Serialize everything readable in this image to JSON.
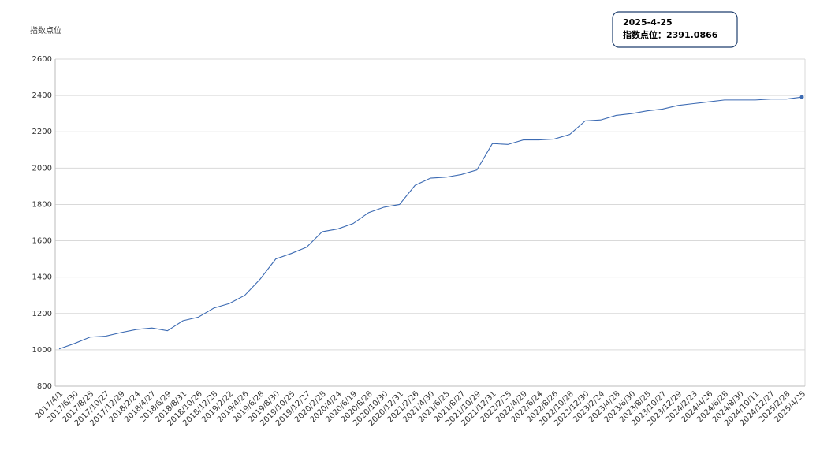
{
  "chart_data": {
    "type": "line",
    "y_label": "指数点位",
    "categories": [
      "2017/4/1",
      "2017/6/30",
      "2017/8/25",
      "2017/10/27",
      "2017/12/29",
      "2018/2/24",
      "2018/4/27",
      "2018/6/29",
      "2018/8/31",
      "2018/10/26",
      "2018/12/28",
      "2019/2/22",
      "2019/4/26",
      "2019/6/28",
      "2019/8/30",
      "2019/10/25",
      "2019/12/27",
      "2020/2/28",
      "2020/4/24",
      "2020/6/19",
      "2020/8/28",
      "2020/10/30",
      "2020/12/31",
      "2021/2/26",
      "2021/4/30",
      "2021/6/25",
      "2021/8/27",
      "2021/10/29",
      "2021/12/31",
      "2022/2/25",
      "2022/4/29",
      "2022/6/24",
      "2022/8/26",
      "2022/10/28",
      "2022/12/30",
      "2023/2/24",
      "2023/4/28",
      "2023/6/30",
      "2023/8/25",
      "2023/10/27",
      "2023/12/29",
      "2024/2/23",
      "2024/4/26",
      "2024/6/28",
      "2024/8/30",
      "2024/10/11",
      "2024/12/27",
      "2025/2/28",
      "2025/4/25"
    ],
    "values": [
      1005,
      1035,
      1070,
      1075,
      1095,
      1112,
      1120,
      1105,
      1160,
      1180,
      1230,
      1255,
      1300,
      1390,
      1500,
      1530,
      1565,
      1650,
      1665,
      1695,
      1755,
      1785,
      1800,
      1905,
      1945,
      1950,
      1965,
      1990,
      2135,
      2130,
      2155,
      2155,
      2160,
      2185,
      2260,
      2265,
      2290,
      2300,
      2315,
      2325,
      2345,
      2355,
      2365,
      2375,
      2375,
      2375,
      2380,
      2380,
      2391.0866
    ],
    "color": "#3d6bb3",
    "ylim": [
      800,
      2600
    ],
    "yticks": [
      800,
      1000,
      1200,
      1400,
      1600,
      1800,
      2000,
      2200,
      2400,
      2600
    ],
    "grid": true,
    "tooltip": {
      "date": "2025-4-25",
      "label": "指数点位："
    }
  }
}
